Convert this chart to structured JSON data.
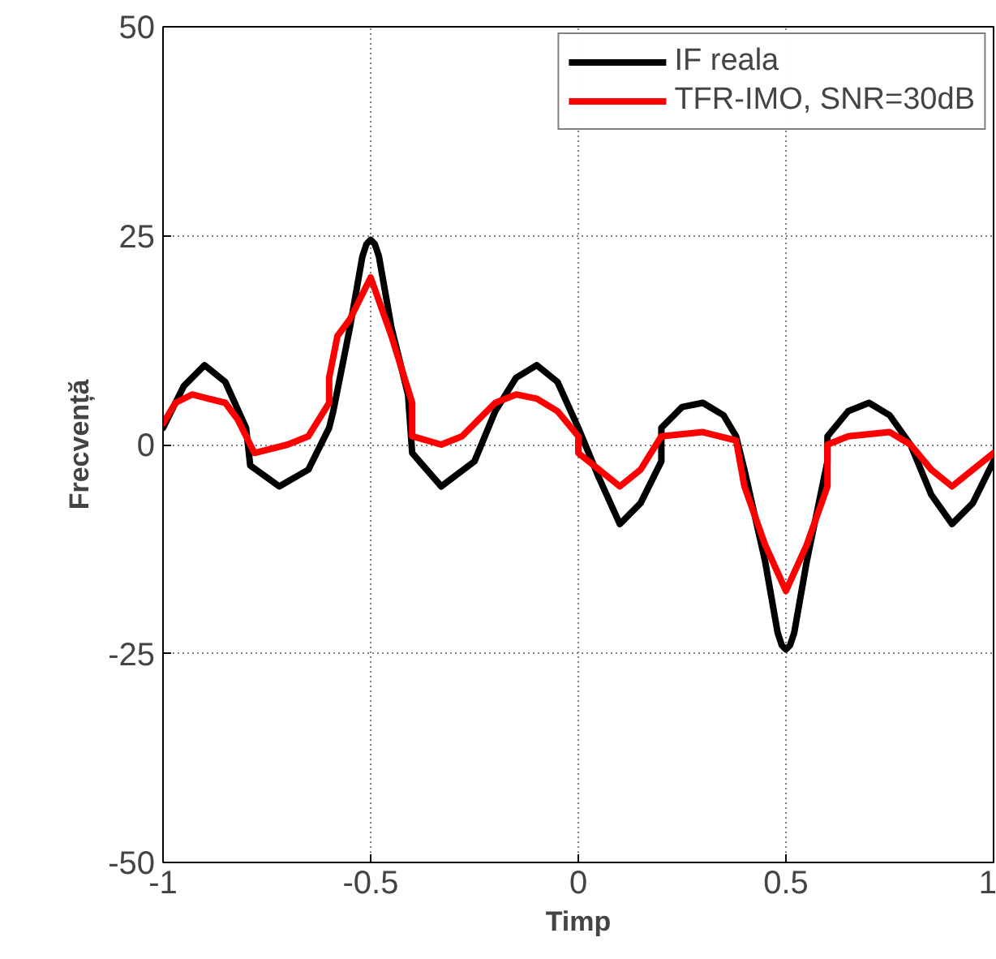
{
  "chart_data": {
    "type": "line",
    "xlabel": "Timp",
    "ylabel": "Frecvență",
    "xlim": [
      -1,
      1
    ],
    "ylim": [
      -50,
      50
    ],
    "xticks": [
      -1,
      -0.5,
      0,
      0.5,
      1
    ],
    "yticks": [
      -50,
      -25,
      0,
      25,
      50
    ],
    "grid": true,
    "legend": "top right",
    "line_style": "solid",
    "marker": "none",
    "series": [
      {
        "name": "IF reala",
        "color": "#000000",
        "x": [
          -1,
          -0.95,
          -0.9,
          -0.85,
          -0.8,
          -0.79,
          -0.72,
          -0.65,
          -0.6,
          -0.59,
          -0.55,
          -0.52,
          -0.51,
          -0.5,
          -0.49,
          -0.48,
          -0.45,
          -0.41,
          -0.4,
          -0.33,
          -0.25,
          -0.2,
          -0.15,
          -0.1,
          -0.05,
          0,
          0.05,
          0.1,
          0.15,
          0.2,
          0.2,
          0.25,
          0.3,
          0.35,
          0.38,
          0.4,
          0.45,
          0.48,
          0.49,
          0.5,
          0.51,
          0.52,
          0.55,
          0.6,
          0.6,
          0.65,
          0.7,
          0.75,
          0.8,
          0.85,
          0.9,
          0.95,
          1
        ],
        "values": [
          2,
          7,
          9.5,
          7.5,
          2,
          -2.5,
          -5,
          -3,
          2,
          4,
          14,
          22.5,
          24,
          24.5,
          24,
          22.5,
          14,
          6,
          -1,
          -5,
          -2,
          4,
          8,
          9.5,
          7.5,
          2,
          -4,
          -9.5,
          -7,
          -2,
          2,
          4.5,
          5,
          3.5,
          1,
          -3,
          -14,
          -22.5,
          -24,
          -24.5,
          -24,
          -22.5,
          -14,
          -2,
          1,
          4,
          5,
          3.5,
          0,
          -6,
          -9.5,
          -7,
          -2
        ]
      },
      {
        "name": "TFR-IMO, SNR=30dB",
        "color": "#ff0000",
        "x": [
          -1,
          -0.97,
          -0.93,
          -0.85,
          -0.82,
          -0.8,
          -0.78,
          -0.7,
          -0.65,
          -0.6,
          -0.6,
          -0.58,
          -0.55,
          -0.5,
          -0.45,
          -0.4,
          -0.4,
          -0.33,
          -0.28,
          -0.2,
          -0.15,
          -0.1,
          -0.05,
          0,
          0,
          0.05,
          0.1,
          0.15,
          0.2,
          0.3,
          0.38,
          0.4,
          0.45,
          0.5,
          0.55,
          0.6,
          0.6,
          0.65,
          0.75,
          0.8,
          0.85,
          0.9,
          0.95,
          1
        ],
        "values": [
          2.5,
          5,
          6,
          5,
          3,
          1,
          -1,
          0,
          1,
          5,
          8,
          13,
          15,
          20,
          13,
          5,
          1,
          0,
          1,
          5,
          6,
          5.5,
          4,
          1,
          -1,
          -3,
          -5,
          -3,
          1,
          1.5,
          0.5,
          -5,
          -12,
          -17.5,
          -12,
          -5,
          0,
          1,
          1.5,
          0,
          -3,
          -5,
          -3,
          -1
        ]
      }
    ]
  }
}
